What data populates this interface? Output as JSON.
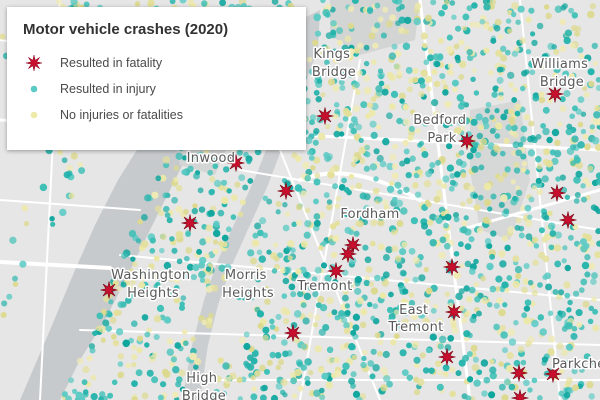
{
  "legend": {
    "title": "Motor vehicle crashes (2020)",
    "items": [
      {
        "label": "Resulted in fatality",
        "symbol": "red-star-icon",
        "color": "#c8102e"
      },
      {
        "label": "Resulted in injury",
        "symbol": "teal-dot-icon",
        "color": "#20b2aa"
      },
      {
        "label": "No injuries or fatalities",
        "symbol": "yellow-dot-icon",
        "color": "#eae59a"
      }
    ]
  },
  "place_labels": [
    {
      "id": "kings-bridge",
      "lines": [
        "Kings",
        "Bridge"
      ]
    },
    {
      "id": "williams-bridge",
      "lines": [
        "Williams",
        "Bridge"
      ]
    },
    {
      "id": "bedford-park",
      "lines": [
        "Bedford",
        "Park"
      ]
    },
    {
      "id": "inwood",
      "lines": [
        "Inwood"
      ]
    },
    {
      "id": "fordham",
      "lines": [
        "Fordham"
      ]
    },
    {
      "id": "washington-heights",
      "lines": [
        "Washington",
        "Heights"
      ]
    },
    {
      "id": "morris-heights",
      "lines": [
        "Morris",
        "Heights"
      ]
    },
    {
      "id": "tremont",
      "lines": [
        "Tremont"
      ]
    },
    {
      "id": "east-tremont",
      "lines": [
        "East",
        "Tremont"
      ]
    },
    {
      "id": "high-bridge",
      "lines": [
        "High",
        "Bridge"
      ]
    },
    {
      "id": "parkchester",
      "lines": [
        "Parkche"
      ]
    }
  ],
  "colors": {
    "land": "#e6e6e6",
    "water": "#c7cacc",
    "park": "#d2d4d3",
    "road": "#ffffff",
    "fatality": "#c8102e",
    "injury": "#1fb1a8",
    "no_injury": "#e7e39a"
  }
}
